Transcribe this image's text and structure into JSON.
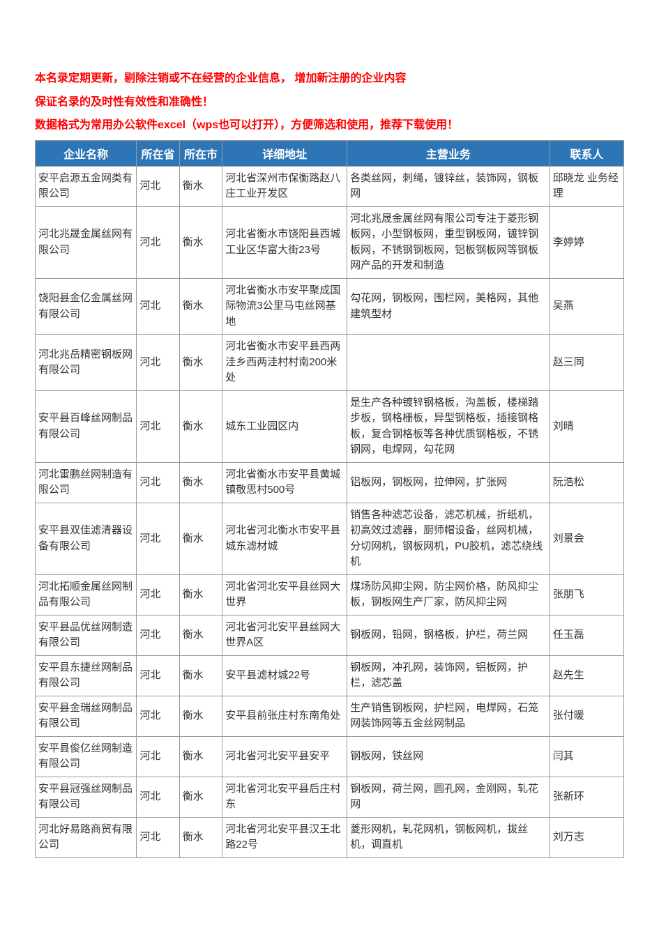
{
  "notices": [
    "本名录定期更新，剔除注销或不在经营的企业信息， 增加新注册的企业内容",
    "保证名录的及时性有效性和准确性！",
    "数据格式为常用办公软件excel（wps也可以打开），方便筛选和使用，推荐下载使用！"
  ],
  "columns": [
    "企业名称",
    "所在省",
    "所在市",
    "详细地址",
    "主营业务",
    "联系人"
  ],
  "column_widths": [
    "130px",
    "55px",
    "55px",
    "160px",
    "260px",
    "95px"
  ],
  "header_bg_color": "#2e75b6",
  "header_text_color": "#ffffff",
  "border_color": "#999999",
  "notice_color": "#ff0000",
  "rows": [
    {
      "name": "安平启源五金网类有限公司",
      "province": "河北",
      "city": "衡水",
      "address": "河北省深州市保衡路赵八庄工业开发区",
      "business": "各类丝网，刺绳，镀锌丝，装饰网，钢板网",
      "contact": "邱晓龙 业务经理"
    },
    {
      "name": "河北兆晟金属丝网有限公司",
      "province": "河北",
      "city": "衡水",
      "address": "河北省衡水市饶阳县西城工业区华富大街23号",
      "business": "河北兆晟金属丝网有限公司专注于菱形钢板网，小型钢板网，重型钢板网，镀锌钢板网，不锈钢钢板网，铝板钢板网等钢板网产品的开发和制造",
      "contact": "李婷婷"
    },
    {
      "name": "饶阳县金亿金属丝网有限公司",
      "province": "河北",
      "city": "衡水",
      "address": "河北省衡水市安平聚成国际物流3公里马屯丝网基地",
      "business": "勾花网，钢板网，围栏网，美格网，其他建筑型材",
      "contact": "吴燕"
    },
    {
      "name": "河北兆岳精密钢板网有限公司",
      "province": "河北",
      "city": "衡水",
      "address": "河北省衡水市安平县西两洼乡西两洼村村南200米处",
      "business": "",
      "contact": "赵三同"
    },
    {
      "name": "安平县百峰丝网制品有限公司",
      "province": "河北",
      "city": "衡水",
      "address": "城东工业园区内",
      "business": "是生产各种镀锌钢格板，沟盖板，楼梯踏步板，钢格栅板，异型钢格板，插接钢格板，复合钢格板等各种优质钢格板，不锈钢网，电焊网，勾花网",
      "contact": "刘晴"
    },
    {
      "name": "河北雷鹏丝网制造有限公司",
      "province": "河北",
      "city": "衡水",
      "address": "河北省衡水市安平县黄城镇敬思村500号",
      "business": "铝板网，钢板网，拉伸网，扩张网",
      "contact": "阮浩松"
    },
    {
      "name": "安平县双佳滤清器设备有限公司",
      "province": "河北",
      "city": "衡水",
      "address": "河北省河北衡水市安平县城东滤材城",
      "business": "销售各种滤芯设备，滤芯机械，折纸机，初高效过滤器，厨师帽设备，丝网机械，分切网机，钢板网机，PU胶机，滤芯绕线机",
      "contact": "刘景会"
    },
    {
      "name": "河北拓顺金属丝网制品有限公司",
      "province": "河北",
      "city": "衡水",
      "address": "河北省河北安平县丝网大世界",
      "business": "煤场防风抑尘网，防尘网价格，防风抑尘板，钢板网生产厂家，防风抑尘网",
      "contact": "张朋飞"
    },
    {
      "name": "安平县品优丝网制造有限公司",
      "province": "河北",
      "city": "衡水",
      "address": "河北省河北安平县丝网大世界A区",
      "business": "钢板网，铅网，钢格板，护栏，荷兰网",
      "contact": "任玉磊"
    },
    {
      "name": "安平县东捷丝网制品有限公司",
      "province": "河北",
      "city": "衡水",
      "address": "安平县滤材城22号",
      "business": "钢板网，冲孔网，装饰网，铝板网，护栏，滤芯盖",
      "contact": "赵先生"
    },
    {
      "name": "安平县金瑞丝网制品有限公司",
      "province": "河北",
      "city": "衡水",
      "address": "安平县前张庄村东南角处",
      "business": "生产销售钢板网，护栏网，电焊网，石笼网装饰网等五金丝网制品",
      "contact": "张付暖"
    },
    {
      "name": "安平县俊亿丝网制造有限公司",
      "province": "河北",
      "city": "衡水",
      "address": "河北省河北安平县安平",
      "business": "钢板网，铁丝网",
      "contact": "闫其"
    },
    {
      "name": "安平县冠强丝网制品有限公司",
      "province": "河北",
      "city": "衡水",
      "address": "河北省河北安平县后庄村东",
      "business": "钢板网，荷兰网，圆孔网，金刚网，轧花网",
      "contact": "张新环"
    },
    {
      "name": "河北好易路商贸有限公司",
      "province": "河北",
      "city": "衡水",
      "address": "河北省河北安平县汉王北路22号",
      "business": "菱形网机，轧花网机，钢板网机，拔丝机，调直机",
      "contact": "刘万志"
    }
  ]
}
